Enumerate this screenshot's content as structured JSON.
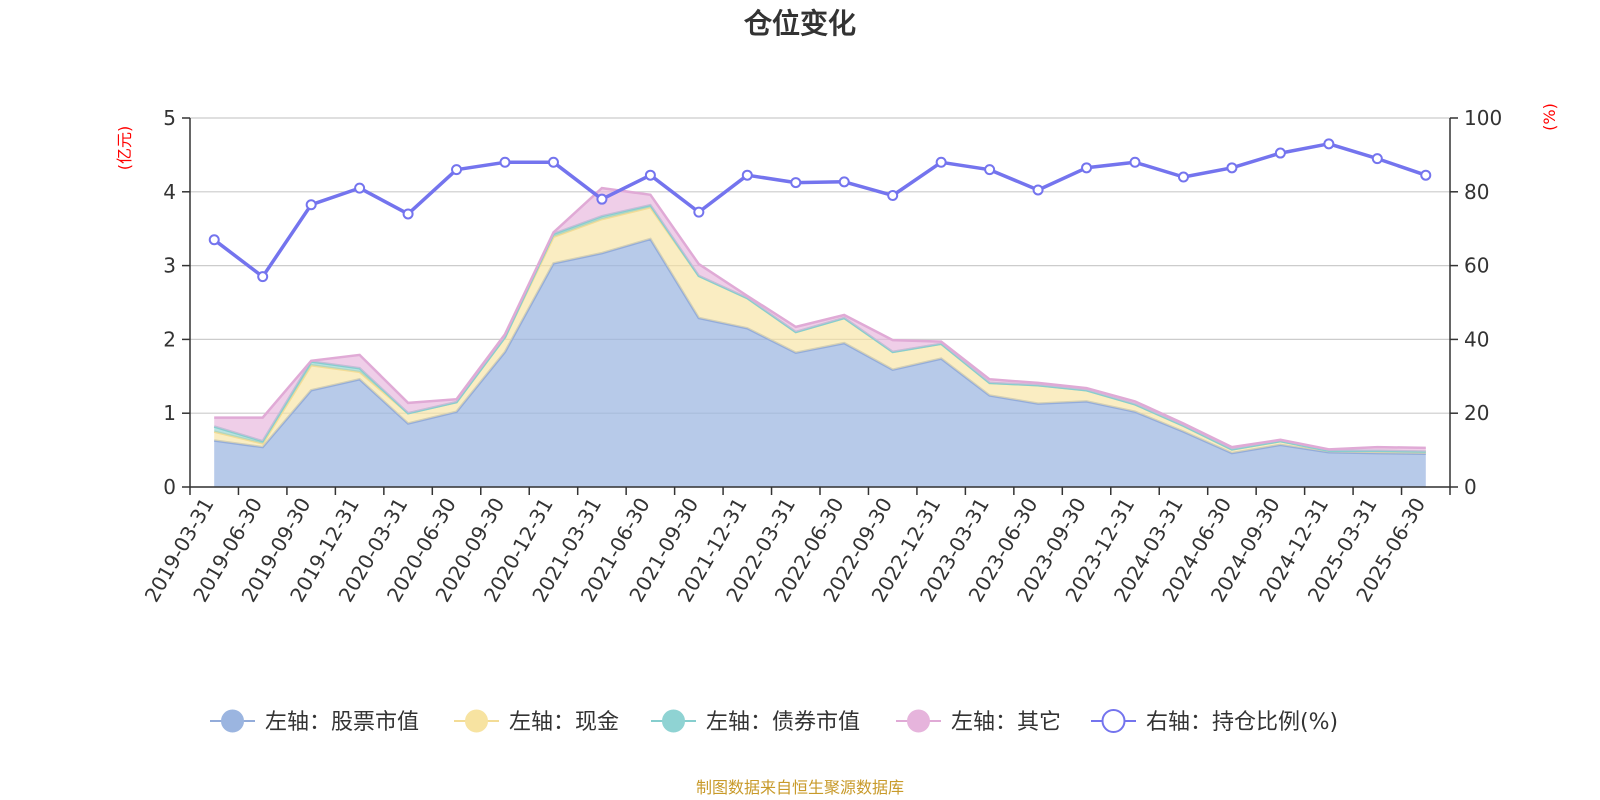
{
  "colors": {
    "stock": "#9bb5e0",
    "cash": "#f7e3a1",
    "bond": "#8fd3d3",
    "other": "#e6b4dc",
    "ratio": "#7474ee",
    "grid": "#cccccc",
    "axis": "#333333",
    "unit": "#ff0000",
    "source": "#c89a2a"
  },
  "chart_data": {
    "type": "area",
    "title": "仓位变化",
    "left_unit": "(亿元)",
    "right_unit": "(%)",
    "ylim_left": [
      0,
      5
    ],
    "ylim_right": [
      0,
      100
    ],
    "yticks_left": [
      "0",
      "1",
      "2",
      "3",
      "4",
      "5"
    ],
    "yticks_right": [
      "0",
      "20",
      "40",
      "60",
      "80",
      "100"
    ],
    "grid": true,
    "legend_position": "bottom",
    "source": "制图数据来自恒生聚源数据库",
    "categories": [
      "2019-03-31",
      "2019-06-30",
      "2019-09-30",
      "2019-12-31",
      "2020-03-31",
      "2020-06-30",
      "2020-09-30",
      "2020-12-31",
      "2021-03-31",
      "2021-06-30",
      "2021-09-30",
      "2021-12-31",
      "2022-03-31",
      "2022-06-30",
      "2022-09-30",
      "2022-12-31",
      "2023-03-31",
      "2023-06-30",
      "2023-09-30",
      "2023-12-31",
      "2024-03-31",
      "2024-06-30",
      "2024-09-30",
      "2024-12-31",
      "2025-03-31",
      "2025-06-30"
    ],
    "series": [
      {
        "name": "左轴：股票市值",
        "axis": "left",
        "kind": "area",
        "values": [
          0.63,
          0.54,
          1.31,
          1.46,
          0.86,
          1.02,
          1.83,
          3.03,
          3.17,
          3.36,
          2.29,
          2.15,
          1.82,
          1.95,
          1.59,
          1.74,
          1.24,
          1.13,
          1.16,
          1.02,
          0.75,
          0.46,
          0.57,
          0.47,
          0.46,
          0.45
        ]
      },
      {
        "name": "左轴：现金",
        "axis": "left",
        "kind": "area",
        "values": [
          0.12,
          0.05,
          0.34,
          0.1,
          0.14,
          0.13,
          0.2,
          0.36,
          0.46,
          0.43,
          0.57,
          0.41,
          0.28,
          0.34,
          0.24,
          0.2,
          0.17,
          0.25,
          0.15,
          0.1,
          0.08,
          0.05,
          0.05,
          0.02,
          0.03,
          0.03
        ]
      },
      {
        "name": "左轴：债券市值",
        "axis": "left",
        "kind": "area",
        "values": [
          0.07,
          0.03,
          0.05,
          0.05,
          0,
          0,
          0,
          0.04,
          0.04,
          0.03,
          0,
          0,
          0,
          0,
          0,
          0,
          0,
          0,
          0,
          0,
          0,
          0,
          0,
          0,
          0,
          0
        ]
      },
      {
        "name": "左轴：其它",
        "axis": "left",
        "kind": "area",
        "values": [
          0.12,
          0.32,
          0.01,
          0.18,
          0.14,
          0.04,
          0.04,
          0.02,
          0.38,
          0.14,
          0.16,
          0.03,
          0.07,
          0.04,
          0.16,
          0.03,
          0.05,
          0.03,
          0.03,
          0.04,
          0.03,
          0.03,
          0.02,
          0.02,
          0.05,
          0.05
        ]
      },
      {
        "name": "右轴：持仓比例(%)",
        "axis": "right",
        "kind": "line",
        "values": [
          67,
          57,
          76.5,
          81,
          74,
          86,
          88,
          88,
          78,
          84.5,
          74.5,
          84.5,
          82.5,
          82.7,
          79,
          88,
          86,
          80.5,
          86.5,
          88,
          84,
          86.5,
          90.5,
          93,
          89,
          84.5
        ]
      }
    ]
  }
}
